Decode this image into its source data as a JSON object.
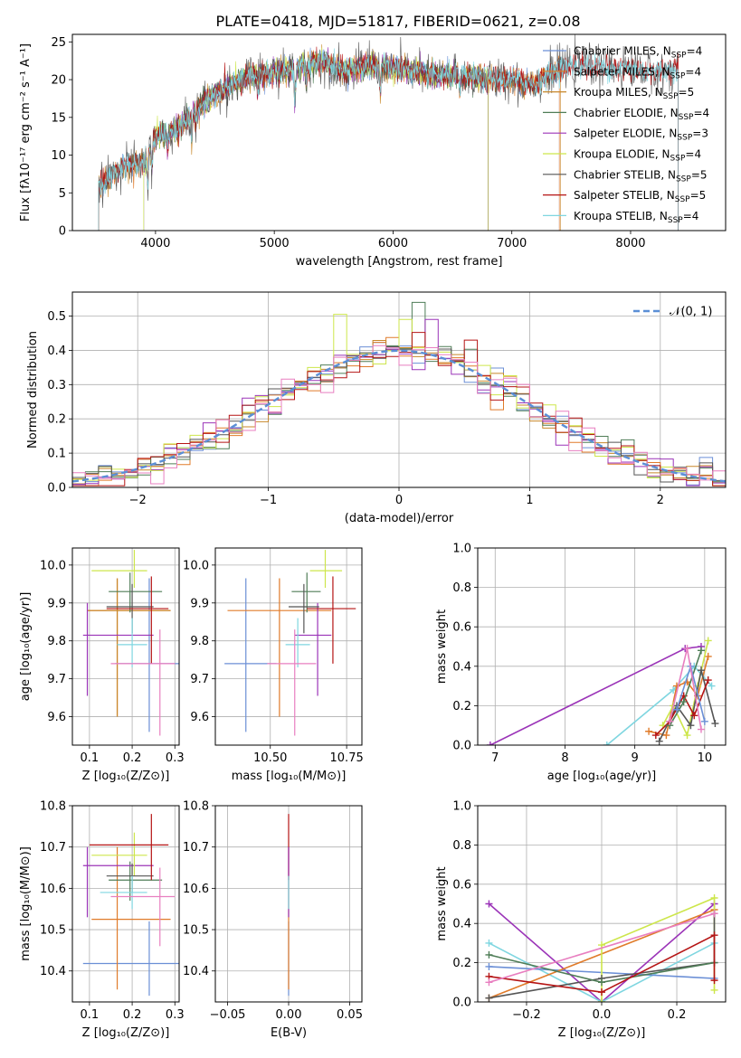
{
  "title": "PLATE=0418, MJD=51817, FIBERID=0621, z=0.08",
  "colors": {
    "Chabrier MILES": "#6b8fd6",
    "Salpeter MILES": "#e07b2a",
    "Kroupa MILES": "#c8872a",
    "Chabrier ELODIE": "#4f7d57",
    "Salpeter ELODIE": "#9b34b8",
    "Kroupa ELODIE": "#cde64b",
    "Chabrier STELIB": "#555555",
    "Salpeter STELIB": "#b51414",
    "Kroupa STELIB": "#7fd6e0",
    "normal_curve": "#5b8fd6",
    "pink": "#e87fc0"
  },
  "chart_data": [
    {
      "id": "spectrum",
      "type": "line",
      "xlabel": "wavelength [Angstrom, rest frame]",
      "ylabel": "Flux [fλ10⁻¹⁷ erg cm⁻² s⁻¹ A⁻¹]",
      "xlim": [
        3300,
        8800
      ],
      "ylim": [
        0,
        26
      ],
      "xticks": [
        4000,
        5000,
        6000,
        7000,
        8000
      ],
      "yticks": [
        0,
        5,
        10,
        15,
        20,
        25
      ],
      "grid": false,
      "legend": "top-right",
      "legend_entries": [
        {
          "label": "Chabrier MILES, N",
          "sub": "SSP",
          "tail": "=4"
        },
        {
          "label": "Salpeter MILES, N",
          "sub": "SSP",
          "tail": "=4"
        },
        {
          "label": "Kroupa MILES, N",
          "sub": "SSP",
          "tail": "=5"
        },
        {
          "label": "Chabrier ELODIE, N",
          "sub": "SSP",
          "tail": "=4"
        },
        {
          "label": "Salpeter ELODIE, N",
          "sub": "SSP",
          "tail": "=3"
        },
        {
          "label": "Kroupa ELODIE, N",
          "sub": "SSP",
          "tail": "=4"
        },
        {
          "label": "Chabrier STELIB, N",
          "sub": "SSP",
          "tail": "=5"
        },
        {
          "label": "Salpeter STELIB, N",
          "sub": "SSP",
          "tail": "=5"
        },
        {
          "label": "Kroupa STELIB, N",
          "sub": "SSP",
          "tail": "=4"
        }
      ],
      "data_envelope": {
        "x": [
          3520,
          3700,
          3900,
          4000,
          4200,
          4400,
          4600,
          4800,
          5000,
          5200,
          5400,
          5600,
          5800,
          6000,
          6200,
          6400,
          6600,
          6800,
          7000,
          7200,
          7400,
          7600,
          7800,
          8000,
          8200,
          8400
        ],
        "y": [
          5.5,
          8.5,
          9.0,
          12.5,
          13.5,
          17.0,
          19.0,
          20.5,
          21.0,
          21.5,
          22.5,
          21.0,
          22.0,
          21.5,
          21.0,
          20.5,
          20.5,
          20.0,
          20.0,
          19.5,
          21.5,
          22.0,
          21.5,
          21.5,
          21.0,
          21.5
        ]
      },
      "model_ranges": {
        "Chabrier MILES": [
          3520,
          7400
        ],
        "Salpeter MILES": [
          3520,
          7400
        ],
        "Kroupa MILES": [
          3520,
          7410
        ],
        "Chabrier ELODIE": [
          3900,
          6800
        ],
        "Salpeter ELODIE": [
          3900,
          6800
        ],
        "Kroupa ELODIE": [
          3900,
          6800
        ],
        "Chabrier STELIB": [
          3520,
          8400
        ],
        "Salpeter STELIB": [
          3520,
          8400
        ],
        "Kroupa STELIB": [
          3520,
          8400
        ]
      }
    },
    {
      "id": "residuals",
      "type": "step",
      "xlabel": "(data-model)/error",
      "ylabel": "Normed distribution",
      "xlim": [
        -2.5,
        2.5
      ],
      "ylim": [
        0,
        0.57
      ],
      "xticks": [
        -2,
        -1,
        0,
        1,
        2
      ],
      "yticks": [
        0.0,
        0.1,
        0.2,
        0.3,
        0.4,
        0.5
      ],
      "grid": true,
      "legend": "top-right",
      "legend_label": "𝒩(0, 1)",
      "bin_width": 0.1,
      "spikes": {
        "Chabrier ELODIE": {
          "x": 0.15,
          "y": 0.54
        },
        "Kroupa ELODIE": {
          "x": -0.45,
          "y": 0.505
        },
        "Kroupa ELODIE 2": {
          "x": 0.05,
          "y": 0.49
        },
        "Salpeter ELODIE": {
          "x": 0.25,
          "y": 0.49
        },
        "Salpeter STELIB": {
          "x": 0.55,
          "y": 0.43
        }
      }
    },
    {
      "id": "age_vs_Z",
      "type": "errorbar",
      "xlabel": "Z [log₁₀(Z/Z⊙)]",
      "ylabel": "age  [log₁₀(age/yr)]",
      "xlim": [
        0.06,
        0.31
      ],
      "ylim": [
        9.525,
        10.045
      ],
      "xticks": [
        0.1,
        0.2,
        0.3
      ],
      "yticks": [
        9.6,
        9.7,
        9.8,
        9.9,
        10.0
      ],
      "grid": true,
      "points": [
        {
          "model": "Chabrier MILES",
          "x": 0.24,
          "xerr": [
            0.16,
            0.31
          ],
          "y": 9.74,
          "yerr": [
            9.56,
            9.965
          ]
        },
        {
          "model": "Salpeter MILES",
          "x": 0.165,
          "xerr": [
            0.095,
            0.29
          ],
          "y": 9.88,
          "yerr": [
            9.6,
            9.965
          ]
        },
        {
          "model": "Kroupa MILES",
          "x": 0.165,
          "xerr": [
            0.095,
            0.29
          ],
          "y": 9.88,
          "yerr": [
            9.6,
            9.965
          ]
        },
        {
          "model": "Chabrier ELODIE",
          "x": 0.195,
          "xerr": [
            0.145,
            0.27
          ],
          "y": 9.93,
          "yerr": [
            9.875,
            9.98
          ]
        },
        {
          "model": "Salpeter ELODIE",
          "x": 0.095,
          "xerr": [
            0.085,
            0.25
          ],
          "y": 9.815,
          "yerr": [
            9.655,
            9.9
          ]
        },
        {
          "model": "Kroupa ELODIE",
          "x": 0.205,
          "xerr": [
            0.105,
            0.235
          ],
          "y": 9.985,
          "yerr": [
            9.94,
            10.04
          ]
        },
        {
          "model": "Chabrier STELIB",
          "x": 0.2,
          "xerr": [
            0.14,
            0.25
          ],
          "y": 9.89,
          "yerr": [
            9.82,
            9.95
          ]
        },
        {
          "model": "Salpeter STELIB",
          "x": 0.245,
          "xerr": [
            0.14,
            0.285
          ],
          "y": 9.885,
          "yerr": [
            9.74,
            9.97
          ]
        },
        {
          "model": "Kroupa STELIB",
          "x": 0.2,
          "xerr": [
            0.165,
            0.235
          ],
          "y": 9.79,
          "yerr": [
            9.73,
            9.86
          ]
        },
        {
          "model": "pink",
          "x": 0.265,
          "xerr": [
            0.15,
            0.3
          ],
          "y": 9.74,
          "yerr": [
            9.55,
            9.83
          ]
        }
      ]
    },
    {
      "id": "age_vs_mass",
      "type": "errorbar",
      "xlabel": "mass [log₁₀(M/M⊙)]",
      "ylabel": "",
      "xlim": [
        10.32,
        10.8
      ],
      "ylim": [
        9.525,
        10.045
      ],
      "xticks": [
        10.5,
        10.75
      ],
      "yticks": [
        9.6,
        9.7,
        9.8,
        9.9,
        10.0
      ],
      "grid": true,
      "points": [
        {
          "model": "Chabrier MILES",
          "x": 10.42,
          "xerr": [
            10.35,
            10.52
          ],
          "y": 9.74,
          "yerr": [
            9.56,
            9.965
          ]
        },
        {
          "model": "Salpeter MILES",
          "x": 10.53,
          "xerr": [
            10.36,
            10.7
          ],
          "y": 9.88,
          "yerr": [
            9.6,
            9.965
          ]
        },
        {
          "model": "Chabrier ELODIE",
          "x": 10.62,
          "xerr": [
            10.57,
            10.665
          ],
          "y": 9.93,
          "yerr": [
            9.875,
            9.98
          ]
        },
        {
          "model": "Salpeter ELODIE",
          "x": 10.655,
          "xerr": [
            10.58,
            10.7
          ],
          "y": 9.815,
          "yerr": [
            9.655,
            9.9
          ]
        },
        {
          "model": "Kroupa ELODIE",
          "x": 10.68,
          "xerr": [
            10.63,
            10.735
          ],
          "y": 9.985,
          "yerr": [
            9.94,
            10.04
          ]
        },
        {
          "model": "Chabrier STELIB",
          "x": 10.61,
          "xerr": [
            10.56,
            10.66
          ],
          "y": 9.89,
          "yerr": [
            9.82,
            9.95
          ]
        },
        {
          "model": "Salpeter STELIB",
          "x": 10.705,
          "xerr": [
            10.62,
            10.78
          ],
          "y": 9.885,
          "yerr": [
            9.74,
            9.97
          ]
        },
        {
          "model": "Kroupa STELIB",
          "x": 10.59,
          "xerr": [
            10.55,
            10.63
          ],
          "y": 9.79,
          "yerr": [
            9.73,
            9.86
          ]
        },
        {
          "model": "pink",
          "x": 10.58,
          "xerr": [
            10.49,
            10.65
          ],
          "y": 9.74,
          "yerr": [
            9.55,
            9.83
          ]
        }
      ]
    },
    {
      "id": "weight_vs_age",
      "type": "line",
      "xlabel": "age  [log₁₀(age/yr)]",
      "ylabel": "mass weight",
      "xlim": [
        6.75,
        10.3
      ],
      "ylim": [
        0,
        1.0
      ],
      "xticks": [
        7,
        8,
        9,
        10
      ],
      "yticks": [
        0.0,
        0.2,
        0.4,
        0.6,
        0.8,
        1.0
      ],
      "grid": true,
      "series": [
        {
          "model": "Salpeter ELODIE",
          "x": [
            6.93,
            9.72,
            9.95
          ],
          "y": [
            0.0,
            0.49,
            0.5
          ]
        },
        {
          "model": "Kroupa STELIB",
          "x": [
            8.6,
            9.55,
            9.85,
            10.1
          ],
          "y": [
            0.0,
            0.28,
            0.4,
            0.3
          ]
        },
        {
          "model": "Salpeter MILES",
          "x": [
            9.2,
            9.45,
            9.6,
            9.75,
            9.9,
            10.05
          ],
          "y": [
            0.07,
            0.05,
            0.3,
            0.32,
            0.25,
            0.45
          ]
        },
        {
          "model": "Kroupa ELODIE",
          "x": [
            9.4,
            9.55,
            9.75,
            9.9,
            10.05
          ],
          "y": [
            0.1,
            0.2,
            0.05,
            0.3,
            0.53
          ]
        },
        {
          "model": "Chabrier STELIB",
          "x": [
            9.35,
            9.6,
            9.8,
            9.95,
            10.15
          ],
          "y": [
            0.02,
            0.2,
            0.1,
            0.38,
            0.11
          ]
        },
        {
          "model": "Salpeter STELIB",
          "x": [
            9.3,
            9.5,
            9.7,
            9.85,
            10.05
          ],
          "y": [
            0.05,
            0.12,
            0.25,
            0.15,
            0.33
          ]
        },
        {
          "model": "Chabrier ELODIE",
          "x": [
            9.5,
            9.7,
            9.95
          ],
          "y": [
            0.1,
            0.22,
            0.48
          ]
        },
        {
          "model": "Chabrier MILES",
          "x": [
            9.6,
            9.8,
            10.0
          ],
          "y": [
            0.18,
            0.4,
            0.12
          ]
        },
        {
          "model": "pink",
          "x": [
            9.5,
            9.75,
            9.95
          ],
          "y": [
            0.12,
            0.49,
            0.08
          ]
        }
      ]
    },
    {
      "id": "mass_vs_Z",
      "type": "errorbar",
      "xlabel": "Z [log₁₀(Z/Z⊙)]",
      "ylabel": "mass [log₁₀(M/M⊙)]",
      "xlim": [
        0.06,
        0.31
      ],
      "ylim": [
        10.325,
        10.8
      ],
      "xticks": [
        0.1,
        0.2,
        0.3
      ],
      "yticks": [
        10.4,
        10.5,
        10.6,
        10.7,
        10.8
      ],
      "grid": true,
      "points": [
        {
          "model": "Chabrier MILES",
          "x": 0.24,
          "xerr": [
            0.085,
            0.31
          ],
          "y": 10.418,
          "yerr": [
            10.34,
            10.52
          ]
        },
        {
          "model": "Salpeter MILES",
          "x": 0.165,
          "xerr": [
            0.105,
            0.29
          ],
          "y": 10.525,
          "yerr": [
            10.355,
            10.7
          ]
        },
        {
          "model": "Chabrier ELODIE",
          "x": 0.195,
          "xerr": [
            0.145,
            0.27
          ],
          "y": 10.62,
          "yerr": [
            10.57,
            10.665
          ]
        },
        {
          "model": "Salpeter ELODIE",
          "x": 0.095,
          "xerr": [
            0.085,
            0.25
          ],
          "y": 10.655,
          "yerr": [
            10.53,
            10.7
          ]
        },
        {
          "model": "Kroupa ELODIE",
          "x": 0.205,
          "xerr": [
            0.105,
            0.235
          ],
          "y": 10.68,
          "yerr": [
            10.63,
            10.735
          ]
        },
        {
          "model": "Chabrier STELIB",
          "x": 0.2,
          "xerr": [
            0.14,
            0.25
          ],
          "y": 10.63,
          "yerr": [
            10.59,
            10.66
          ]
        },
        {
          "model": "Salpeter STELIB",
          "x": 0.245,
          "xerr": [
            0.1,
            0.285
          ],
          "y": 10.705,
          "yerr": [
            10.62,
            10.78
          ]
        },
        {
          "model": "Kroupa STELIB",
          "x": 0.2,
          "xerr": [
            0.125,
            0.235
          ],
          "y": 10.59,
          "yerr": [
            10.55,
            10.63
          ]
        },
        {
          "model": "pink",
          "x": 0.265,
          "xerr": [
            0.15,
            0.3
          ],
          "y": 10.58,
          "yerr": [
            10.46,
            10.65
          ]
        }
      ]
    },
    {
      "id": "mass_vs_EBV",
      "type": "errorbar",
      "xlabel": "E(B-V)",
      "ylabel": "",
      "xlim": [
        -0.06,
        0.06
      ],
      "ylim": [
        10.325,
        10.8
      ],
      "xticks": [
        -0.05,
        0.0,
        0.05
      ],
      "xticklabels": [
        "−0.05",
        "0.00",
        "0.05"
      ],
      "yticks": [
        10.4,
        10.5,
        10.6,
        10.7,
        10.8
      ],
      "grid": true,
      "points": [
        {
          "model": "Chabrier MILES",
          "x": 0.0,
          "y": 10.418,
          "yerr": [
            10.34,
            10.52
          ]
        },
        {
          "model": "Salpeter MILES",
          "x": 0.0,
          "y": 10.525,
          "yerr": [
            10.355,
            10.7
          ]
        },
        {
          "model": "Salpeter STELIB",
          "x": 0.0,
          "y": 10.705,
          "yerr": [
            10.62,
            10.78
          ]
        },
        {
          "model": "Salpeter ELODIE",
          "x": 0.0,
          "y": 10.655,
          "yerr": [
            10.53,
            10.7
          ]
        },
        {
          "model": "Kroupa STELIB",
          "x": 0.0,
          "y": 10.59,
          "yerr": [
            10.55,
            10.63
          ]
        }
      ]
    },
    {
      "id": "weight_vs_Z",
      "type": "line",
      "xlabel": "Z [log₁₀(Z/Z⊙)]",
      "ylabel": "mass weight",
      "xlim": [
        -0.33,
        0.33
      ],
      "ylim": [
        0,
        1.0
      ],
      "xticks": [
        -0.2,
        0.0,
        0.2
      ],
      "xticklabels": [
        "−0.2",
        "0.0",
        "0.2"
      ],
      "yticks": [
        0.0,
        0.2,
        0.4,
        0.6,
        0.8,
        1.0
      ],
      "grid": true,
      "series": [
        {
          "model": "Salpeter ELODIE",
          "x": [
            -0.3,
            0.0,
            0.3
          ],
          "y": [
            0.5,
            0.0,
            0.5
          ]
        },
        {
          "model": "Kroupa STELIB",
          "x": [
            -0.3,
            0.0,
            0.3
          ],
          "y": [
            0.3,
            0.0,
            0.3
          ]
        },
        {
          "model": "Chabrier MILES",
          "x": [
            -0.3,
            0.3
          ],
          "y": [
            0.18,
            0.12
          ]
        },
        {
          "model": "Salpeter MILES",
          "x": [
            -0.3,
            0.3
          ],
          "y": [
            0.02,
            0.47
          ]
        },
        {
          "model": "Kroupa ELODIE",
          "x": [
            0.0,
            0.0,
            0.3,
            0.3
          ],
          "y": [
            0.0,
            0.29,
            0.53,
            0.06
          ]
        },
        {
          "model": "Chabrier STELIB",
          "x": [
            -0.3,
            0.0,
            0.3,
            0.3
          ],
          "y": [
            0.02,
            0.12,
            0.2,
            0.45
          ]
        },
        {
          "model": "Chabrier ELODIE",
          "x": [
            -0.3,
            0.0,
            0.3
          ],
          "y": [
            0.24,
            0.1,
            0.2
          ]
        },
        {
          "model": "Salpeter STELIB",
          "x": [
            -0.3,
            0.0,
            0.3,
            0.3
          ],
          "y": [
            0.13,
            0.05,
            0.34,
            0.11
          ]
        },
        {
          "model": "pink",
          "x": [
            -0.3,
            0.3
          ],
          "y": [
            0.1,
            0.45
          ]
        }
      ]
    }
  ]
}
